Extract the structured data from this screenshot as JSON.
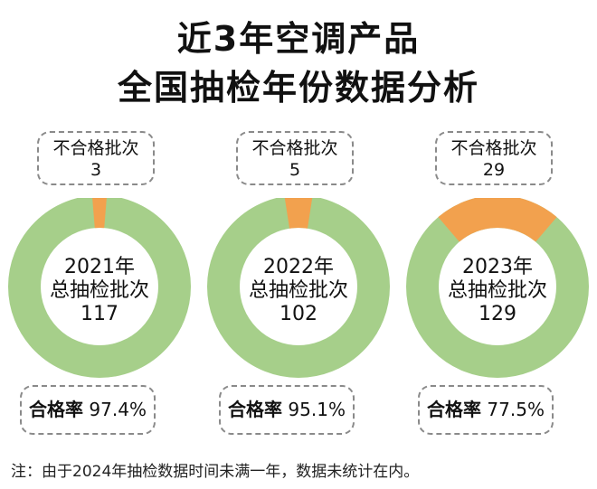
{
  "title_line1": "近3年空调产品",
  "title_line2": "全国抽检年份数据分析",
  "colors": {
    "pass": "#a6cf8a",
    "fail": "#f2a14e"
  },
  "chart_data": {
    "type": "pie",
    "variant": "donut",
    "title": "近3年空调产品全国抽检年份数据分析",
    "charts": [
      {
        "year_label": "2021年",
        "total_label": "总抽检批次",
        "total": 117,
        "fail_label": "不合格批次",
        "fail": 3,
        "rate_label": "合格率",
        "rate": "97.4%"
      },
      {
        "year_label": "2022年",
        "total_label": "总抽检批次",
        "total": 102,
        "fail_label": "不合格批次",
        "fail": 5,
        "rate_label": "合格率",
        "rate": "95.1%"
      },
      {
        "year_label": "2023年",
        "total_label": "总抽检批次",
        "total": 129,
        "fail_label": "不合格批次",
        "fail": 29,
        "rate_label": "合格率",
        "rate": "77.5%"
      }
    ]
  },
  "note": "注：由于2024年抽检数据时间未满一年，数据未统计在内。"
}
